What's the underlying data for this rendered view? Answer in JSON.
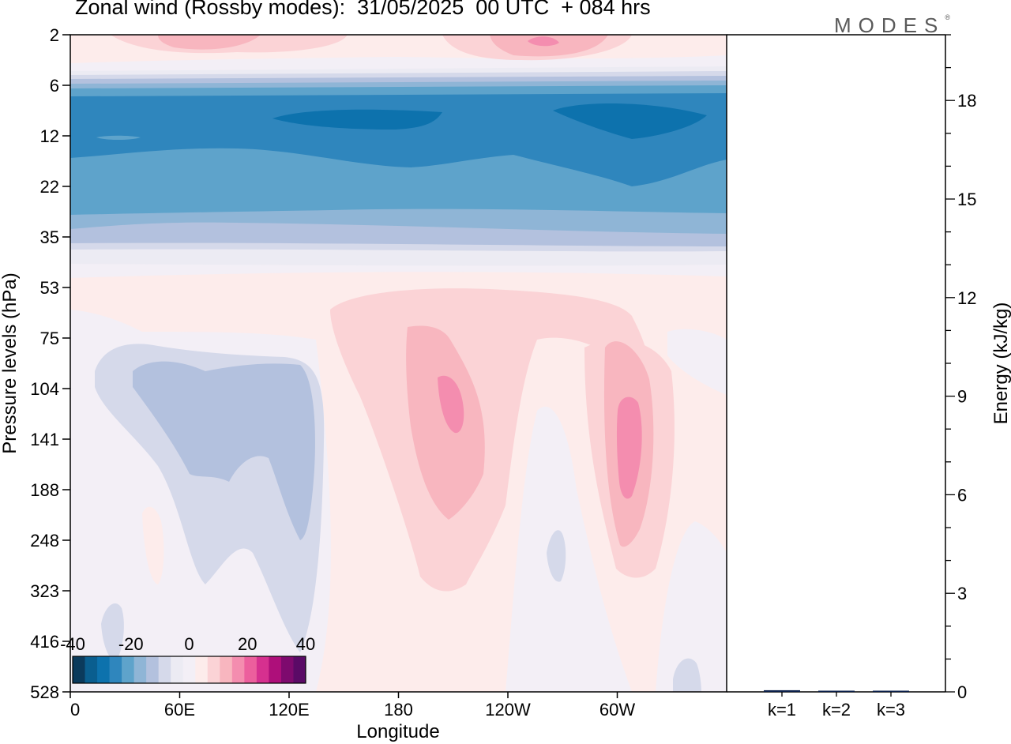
{
  "title": "Zonal wind (Rossby modes):  31/05/2025  00 UTC  + 084 hrs",
  "brand": "MODES",
  "brand_mark": "®",
  "colors": {
    "palette": [
      "#0b3a5c",
      "#0a5e8f",
      "#0d72ad",
      "#2f86bd",
      "#5ea3cb",
      "#8fb5d6",
      "#b3c1de",
      "#d5d9ea",
      "#ecebf3",
      "#f3eff6",
      "#fdeceb",
      "#fbd3d6",
      "#f8b6bf",
      "#f48daf",
      "#ec5f9d",
      "#d6308f",
      "#ae0f7a",
      "#7e0a6e",
      "#5a0a66"
    ],
    "background": "#f3eff6"
  },
  "chart_data": [
    {
      "type": "heatmap",
      "title": "Zonal wind (Rossby modes):  31/05/2025  00 UTC  + 084 hrs",
      "xlabel": "Longitude",
      "ylabel": "Pressure levels (hPa)",
      "x_ticks": [
        "0",
        "60E",
        "120E",
        "180",
        "120W",
        "60W"
      ],
      "y_ticks": [
        "2",
        "6",
        "12",
        "22",
        "35",
        "53",
        "75",
        "104",
        "141",
        "188",
        "248",
        "323",
        "416",
        "528"
      ],
      "colorbar": {
        "tick_labels": [
          "-40",
          "-20",
          "0",
          "20",
          "40"
        ],
        "range": [
          -40,
          40
        ],
        "step": 4.44
      },
      "fields": [
        {
          "level_band": "6-35",
          "lon": [
            0,
            360
          ],
          "value": -20,
          "note_values": [
            -25,
            -30
          ]
        },
        {
          "level_band": "8-14",
          "lon": [
            110,
            200
          ],
          "value": -30
        },
        {
          "level_band": "8-14",
          "lon": [
            265,
            345
          ],
          "value": -30
        },
        {
          "level_band": "2-4",
          "lon": [
            40,
            100
          ],
          "value": 8
        },
        {
          "level_band": "2-4",
          "lon": [
            225,
            290
          ],
          "value": 10
        },
        {
          "level_band": "90-230",
          "lon": [
            185,
            225
          ],
          "value": 10,
          "peak": 15
        },
        {
          "level_band": "90-230",
          "lon": [
            290,
            320
          ],
          "value": 10,
          "peak": 15
        },
        {
          "level_band": "90-200",
          "lon": [
            35,
            130
          ],
          "value": -6
        }
      ]
    },
    {
      "type": "bar",
      "categories": [
        "k=1",
        "k=2",
        "k=3"
      ],
      "values": [
        0.05,
        0.02,
        0.02
      ],
      "ylabel": "Energy (kJ/kg)",
      "y_ticks": [
        "0",
        "3",
        "6",
        "9",
        "12",
        "15",
        "18"
      ],
      "ylim": [
        0,
        20
      ]
    }
  ]
}
